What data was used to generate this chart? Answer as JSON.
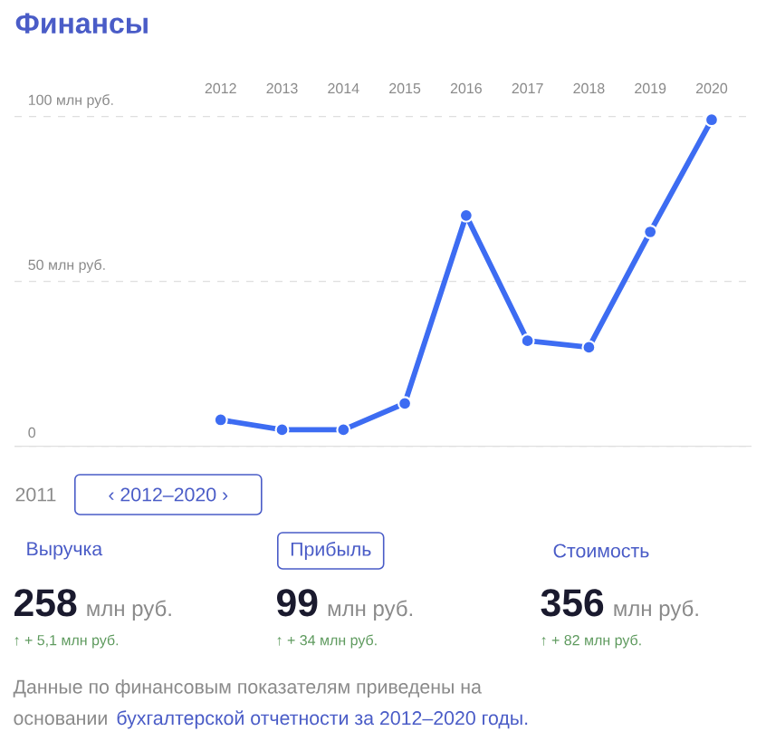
{
  "chart_data": {
    "type": "line",
    "title": "Финансы",
    "categories": [
      "2012",
      "2013",
      "2014",
      "2015",
      "2016",
      "2017",
      "2018",
      "2019",
      "2020"
    ],
    "series": [
      {
        "color": "#3d6cf2",
        "values": [
          8,
          5,
          5,
          13,
          70,
          32,
          30,
          65,
          99
        ]
      }
    ],
    "ylim": [
      0,
      100
    ],
    "yticks": [
      {
        "value": 0,
        "label": "0"
      },
      {
        "value": 50,
        "label": "50 млн руб."
      },
      {
        "value": 100,
        "label": "100 млн руб."
      }
    ],
    "grid": "y",
    "marker": "circle",
    "line_style": "solid",
    "annotations": [
      "2011",
      "‹  2012–2020  ›",
      "Выручка",
      "Прибыль",
      "Стоимость",
      "258",
      "млн руб.",
      "99",
      "млн руб.",
      "356",
      "млн руб.",
      "↑ + 5,1 млн руб.",
      "↑ + 34 млн руб.",
      "↑ + 82 млн руб.",
      "Данные по финансовым показателям приведены на",
      "основании",
      "бухгалтерской отчетности за 2012–2020 годы."
    ]
  }
}
